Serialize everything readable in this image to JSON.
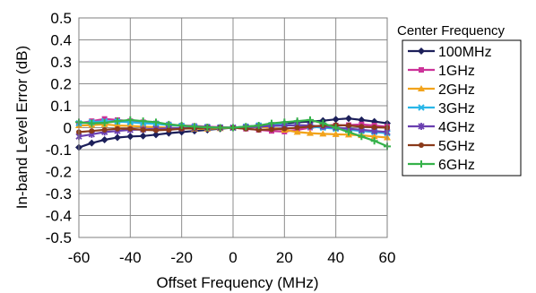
{
  "chart_data": {
    "type": "line",
    "title": "",
    "xlabel": "Offset Frequency (MHz)",
    "ylabel": "In-band Level Error (dB)",
    "xlim": [
      -60,
      60
    ],
    "ylim": [
      -0.5,
      0.5
    ],
    "x_ticks": [
      "-60",
      "-40",
      "-20",
      "0",
      "20",
      "40",
      "60"
    ],
    "y_ticks": [
      "0.5",
      "0.4",
      "0.3",
      "0.2",
      "0.1",
      "0",
      "-0.1",
      "-0.2",
      "-0.3",
      "-0.4",
      "-0.5"
    ],
    "grid": true,
    "legend_title": "Center Frequency",
    "legend_position": "right",
    "x": [
      -60,
      -55,
      -50,
      -45,
      -40,
      -35,
      -30,
      -25,
      -20,
      -15,
      -10,
      -5,
      0,
      5,
      10,
      15,
      20,
      25,
      30,
      35,
      40,
      45,
      50,
      55,
      60
    ],
    "series": [
      {
        "name": "100MHz",
        "color": "#1c1f5a",
        "marker": "diamond",
        "values": [
          -0.09,
          -0.07,
          -0.055,
          -0.045,
          -0.04,
          -0.038,
          -0.032,
          -0.025,
          -0.02,
          -0.015,
          -0.01,
          -0.005,
          0.0,
          0.005,
          0.01,
          0.015,
          0.02,
          0.025,
          0.028,
          0.032,
          0.038,
          0.042,
          0.035,
          0.028,
          0.02
        ]
      },
      {
        "name": "1GHz",
        "color": "#cc3399",
        "marker": "square",
        "values": [
          0.02,
          0.03,
          0.04,
          0.035,
          0.03,
          0.025,
          0.02,
          0.015,
          0.01,
          0.008,
          0.005,
          0.002,
          0.0,
          -0.005,
          -0.01,
          -0.015,
          -0.018,
          -0.01,
          0.0,
          0.005,
          0.01,
          0.012,
          0.015,
          0.01,
          0.005
        ]
      },
      {
        "name": "2GHz",
        "color": "#f2a31b",
        "marker": "triangle",
        "values": [
          0.01,
          0.012,
          0.015,
          0.01,
          0.008,
          0.005,
          0.003,
          0.0,
          -0.003,
          -0.005,
          -0.005,
          -0.003,
          0.0,
          0.003,
          0.005,
          0.0,
          -0.01,
          -0.02,
          -0.025,
          -0.028,
          -0.03,
          -0.032,
          -0.035,
          -0.04,
          -0.045
        ]
      },
      {
        "name": "3GHz",
        "color": "#29b6e8",
        "marker": "cross",
        "values": [
          0.02,
          0.025,
          0.03,
          0.028,
          0.025,
          0.02,
          0.018,
          0.012,
          0.008,
          0.005,
          0.003,
          0.001,
          0.0,
          0.005,
          0.01,
          0.012,
          0.015,
          0.01,
          0.005,
          0.0,
          -0.005,
          -0.01,
          -0.015,
          -0.02,
          -0.025
        ]
      },
      {
        "name": "4GHz",
        "color": "#6a3fb0",
        "marker": "star",
        "values": [
          -0.04,
          -0.03,
          -0.02,
          -0.015,
          -0.01,
          -0.008,
          -0.005,
          -0.003,
          -0.002,
          -0.001,
          0.0,
          0.0,
          0.0,
          0.002,
          0.005,
          0.008,
          0.01,
          0.012,
          0.01,
          0.005,
          0.0,
          -0.005,
          -0.01,
          -0.015,
          -0.02
        ]
      },
      {
        "name": "5GHz",
        "color": "#8a3a1a",
        "marker": "circle",
        "values": [
          -0.02,
          -0.015,
          -0.01,
          -0.005,
          -0.005,
          -0.01,
          -0.012,
          -0.01,
          -0.005,
          -0.002,
          0.0,
          0.0,
          0.0,
          -0.005,
          -0.01,
          -0.008,
          -0.005,
          0.0,
          0.005,
          0.01,
          0.012,
          0.01,
          0.005,
          0.002,
          0.0
        ]
      },
      {
        "name": "6GHz",
        "color": "#35b24a",
        "marker": "plus",
        "values": [
          0.025,
          0.02,
          0.022,
          0.03,
          0.035,
          0.03,
          0.025,
          0.015,
          0.01,
          0.005,
          0.002,
          0.0,
          0.0,
          0.005,
          0.01,
          0.02,
          0.025,
          0.03,
          0.035,
          0.02,
          0.0,
          -0.02,
          -0.04,
          -0.06,
          -0.085
        ]
      }
    ]
  }
}
